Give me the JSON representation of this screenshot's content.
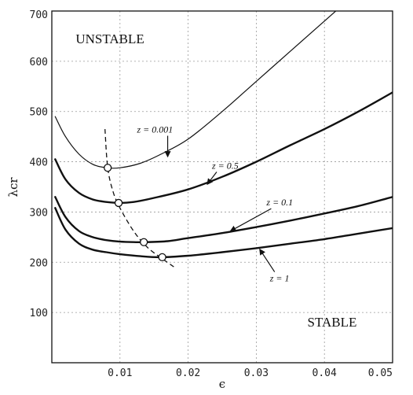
{
  "chart_data": {
    "type": "line",
    "title": "",
    "xlabel": "ϵ",
    "ylabel": "λcr",
    "xlim": [
      0,
      0.05
    ],
    "ylim": [
      0,
      700
    ],
    "grid": true,
    "x_ticks": [
      {
        "value": 0.01,
        "label": "0.01"
      },
      {
        "value": 0.02,
        "label": "0.02"
      },
      {
        "value": 0.03,
        "label": "0.03"
      },
      {
        "value": 0.04,
        "label": "0.04"
      },
      {
        "value": 0.05,
        "label": "0.05"
      }
    ],
    "y_ticks": [
      {
        "value": 100,
        "label": "100"
      },
      {
        "value": 200,
        "label": "200"
      },
      {
        "value": 300,
        "label": "300"
      },
      {
        "value": 400,
        "label": "400"
      },
      {
        "value": 500,
        "label": "500"
      },
      {
        "value": 600,
        "label": "600"
      },
      {
        "value": 700,
        "label": "700"
      }
    ],
    "series": [
      {
        "name": "z = 0.001",
        "style": "thin",
        "x": [
          0.0005,
          0.002,
          0.004,
          0.006,
          0.008,
          0.01,
          0.013,
          0.016,
          0.02,
          0.025,
          0.03,
          0.035,
          0.04,
          0.045
        ],
        "y": [
          490,
          450,
          415,
          395,
          388,
          388,
          397,
          415,
          445,
          500,
          560,
          620,
          680,
          740
        ]
      },
      {
        "name": "z = 0.5",
        "style": "thick",
        "x": [
          0.0005,
          0.002,
          0.004,
          0.006,
          0.008,
          0.01,
          0.012,
          0.015,
          0.02,
          0.025,
          0.03,
          0.035,
          0.04,
          0.045,
          0.05
        ],
        "y": [
          405,
          365,
          338,
          325,
          320,
          318,
          320,
          328,
          345,
          370,
          400,
          433,
          465,
          500,
          538
        ]
      },
      {
        "name": "z = 0.1",
        "style": "thick",
        "x": [
          0.0005,
          0.002,
          0.004,
          0.006,
          0.008,
          0.01,
          0.012,
          0.014,
          0.017,
          0.02,
          0.025,
          0.03,
          0.035,
          0.04,
          0.045,
          0.05
        ],
        "y": [
          330,
          290,
          262,
          250,
          244,
          241,
          240,
          240,
          242,
          248,
          258,
          270,
          283,
          297,
          312,
          330
        ]
      },
      {
        "name": "z = 1",
        "style": "thick",
        "x": [
          0.0005,
          0.002,
          0.004,
          0.006,
          0.008,
          0.01,
          0.013,
          0.016,
          0.02,
          0.025,
          0.03,
          0.035,
          0.04,
          0.045,
          0.05
        ],
        "y": [
          308,
          265,
          237,
          225,
          220,
          216,
          212,
          210,
          213,
          220,
          228,
          237,
          246,
          257,
          268
        ]
      }
    ],
    "minima_curve": {
      "style": "dashed",
      "x": [
        0.0078,
        0.0082,
        0.009,
        0.01,
        0.012,
        0.014,
        0.016,
        0.018
      ],
      "y": [
        465,
        388,
        340,
        308,
        262,
        230,
        209,
        190
      ]
    },
    "minima_points": [
      {
        "x": 0.0082,
        "y": 388
      },
      {
        "x": 0.0098,
        "y": 318
      },
      {
        "x": 0.0135,
        "y": 240
      },
      {
        "x": 0.0162,
        "y": 210
      }
    ],
    "region_labels": [
      {
        "text": "UNSTABLE",
        "x": 0.0035,
        "y": 636
      },
      {
        "text": "STABLE",
        "x": 0.0375,
        "y": 72
      }
    ],
    "annotations": [
      {
        "text": "z = 0.001",
        "label_at": [
          0.0125,
          458
        ],
        "arrow_to": [
          0.017,
          410
        ]
      },
      {
        "text": "z = 0.5",
        "label_at": [
          0.0235,
          386
        ],
        "arrow_to": [
          0.0228,
          355
        ]
      },
      {
        "text": "z = 0.1",
        "label_at": [
          0.0315,
          313
        ],
        "arrow_to": [
          0.0262,
          262
        ]
      },
      {
        "text": "z = 1",
        "label_at": [
          0.032,
          162
        ],
        "arrow_to": [
          0.0305,
          226
        ]
      }
    ]
  }
}
